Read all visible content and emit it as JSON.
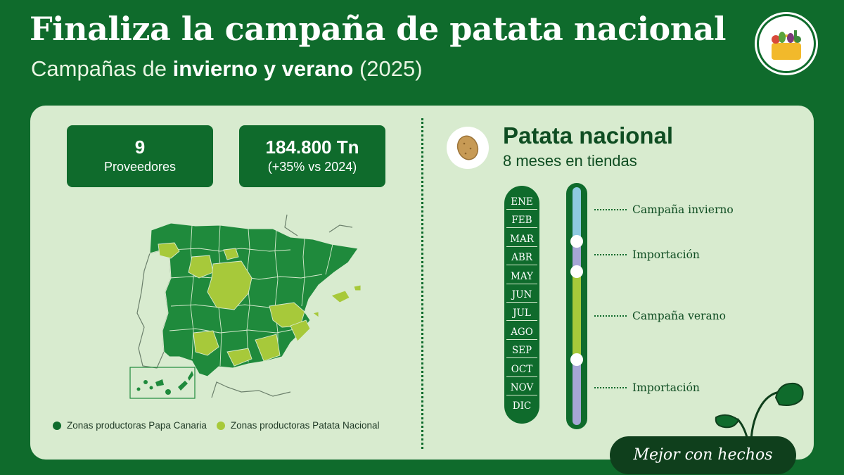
{
  "header": {
    "title": "Finaliza la campaña de patata nacional",
    "subtitle_prefix": "Campañas de ",
    "subtitle_bold": "invierno y verano",
    "subtitle_suffix": " (2025)"
  },
  "logo": {
    "icon": "basket-icon"
  },
  "stats": [
    {
      "value": "9",
      "label": "Proveedores"
    },
    {
      "value": "184.800 Tn",
      "label": "(+35% vs 2024)"
    }
  ],
  "legend": [
    {
      "label": "Zonas productoras Papa Canaria",
      "color": "#0f6b2c"
    },
    {
      "label": "Zonas productoras Patata Nacional",
      "color": "#a7c93a"
    }
  ],
  "right": {
    "icon": "potato-icon",
    "title": "Patata nacional",
    "subtitle": "8 meses en tiendas"
  },
  "months": [
    "ENE",
    "FEB",
    "MAR",
    "ABR",
    "MAY",
    "JUN",
    "JUL",
    "AGO",
    "SEP",
    "OCT",
    "NOV",
    "DIC"
  ],
  "campaigns": [
    {
      "label": "Campaña invierno",
      "color": "#8ec9e0"
    },
    {
      "label": "Importación",
      "color": "#a6a6d6"
    },
    {
      "label": "Campaña verano",
      "color": "#a7c93a"
    },
    {
      "label": "Importación",
      "color": "#a6a6d6"
    }
  ],
  "footer": {
    "label": "Mejor con hechos"
  }
}
